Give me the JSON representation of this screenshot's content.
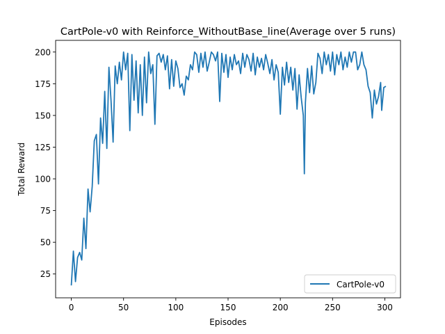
{
  "chart_data": {
    "type": "line",
    "title": "CartPole-v0 with Reinforce_WithoutBase_line(Average over 5 runs)",
    "xlabel": "Episodes",
    "ylabel": "Total Reward",
    "xlim": [
      -15,
      315
    ],
    "ylim": [
      6.2,
      209.2
    ],
    "xticks": [
      0,
      50,
      100,
      150,
      200,
      250,
      300
    ],
    "yticks": [
      25,
      50,
      75,
      100,
      125,
      150,
      175,
      200
    ],
    "grid": false,
    "legend_position": "lower right",
    "series": [
      {
        "name": "CartPole-v0",
        "color": "#1f77b4",
        "points": [
          [
            0,
            16
          ],
          [
            2,
            43
          ],
          [
            4,
            19
          ],
          [
            6,
            38
          ],
          [
            8,
            42
          ],
          [
            10,
            36
          ],
          [
            12,
            69
          ],
          [
            14,
            45
          ],
          [
            16,
            92
          ],
          [
            18,
            74
          ],
          [
            20,
            94
          ],
          [
            22,
            130
          ],
          [
            24,
            135
          ],
          [
            26,
            96
          ],
          [
            28,
            148
          ],
          [
            30,
            128
          ],
          [
            32,
            169
          ],
          [
            34,
            124
          ],
          [
            36,
            188
          ],
          [
            38,
            162
          ],
          [
            40,
            129
          ],
          [
            42,
            189
          ],
          [
            44,
            175
          ],
          [
            46,
            192
          ],
          [
            48,
            178
          ],
          [
            50,
            200
          ],
          [
            52,
            186
          ],
          [
            54,
            199
          ],
          [
            56,
            138
          ],
          [
            58,
            198
          ],
          [
            60,
            162
          ],
          [
            62,
            193
          ],
          [
            64,
            152
          ],
          [
            66,
            190
          ],
          [
            68,
            150
          ],
          [
            70,
            196
          ],
          [
            72,
            160
          ],
          [
            74,
            200
          ],
          [
            76,
            183
          ],
          [
            78,
            190
          ],
          [
            80,
            143
          ],
          [
            82,
            197
          ],
          [
            84,
            199
          ],
          [
            86,
            192
          ],
          [
            88,
            198
          ],
          [
            90,
            186
          ],
          [
            92,
            197
          ],
          [
            94,
            171
          ],
          [
            96,
            194
          ],
          [
            98,
            173
          ],
          [
            100,
            193
          ],
          [
            102,
            187
          ],
          [
            104,
            172
          ],
          [
            106,
            175
          ],
          [
            108,
            166
          ],
          [
            110,
            181
          ],
          [
            112,
            178
          ],
          [
            114,
            190
          ],
          [
            116,
            186
          ],
          [
            118,
            200
          ],
          [
            120,
            198
          ],
          [
            122,
            184
          ],
          [
            124,
            199
          ],
          [
            126,
            188
          ],
          [
            128,
            200
          ],
          [
            130,
            185
          ],
          [
            132,
            192
          ],
          [
            134,
            200
          ],
          [
            136,
            198
          ],
          [
            138,
            193
          ],
          [
            140,
            200
          ],
          [
            142,
            161
          ],
          [
            144,
            199
          ],
          [
            146,
            184
          ],
          [
            148,
            198
          ],
          [
            150,
            180
          ],
          [
            152,
            196
          ],
          [
            154,
            186
          ],
          [
            156,
            198
          ],
          [
            158,
            190
          ],
          [
            160,
            193
          ],
          [
            162,
            183
          ],
          [
            164,
            199
          ],
          [
            166,
            188
          ],
          [
            168,
            198
          ],
          [
            170,
            194
          ],
          [
            172,
            185
          ],
          [
            174,
            199
          ],
          [
            176,
            182
          ],
          [
            178,
            196
          ],
          [
            180,
            188
          ],
          [
            182,
            195
          ],
          [
            184,
            186
          ],
          [
            186,
            198
          ],
          [
            188,
            191
          ],
          [
            190,
            183
          ],
          [
            192,
            194
          ],
          [
            194,
            178
          ],
          [
            196,
            190
          ],
          [
            198,
            184
          ],
          [
            200,
            151
          ],
          [
            202,
            188
          ],
          [
            204,
            174
          ],
          [
            206,
            192
          ],
          [
            208,
            176
          ],
          [
            210,
            188
          ],
          [
            212,
            170
          ],
          [
            214,
            187
          ],
          [
            216,
            155
          ],
          [
            218,
            182
          ],
          [
            220,
            164
          ],
          [
            222,
            150
          ],
          [
            223,
            104
          ],
          [
            224,
            160
          ],
          [
            226,
            187
          ],
          [
            228,
            168
          ],
          [
            230,
            189
          ],
          [
            232,
            167
          ],
          [
            234,
            176
          ],
          [
            236,
            199
          ],
          [
            238,
            195
          ],
          [
            240,
            183
          ],
          [
            242,
            200
          ],
          [
            244,
            190
          ],
          [
            246,
            198
          ],
          [
            248,
            185
          ],
          [
            250,
            200
          ],
          [
            252,
            182
          ],
          [
            254,
            198
          ],
          [
            256,
            190
          ],
          [
            258,
            200
          ],
          [
            260,
            186
          ],
          [
            262,
            196
          ],
          [
            264,
            188
          ],
          [
            266,
            200
          ],
          [
            268,
            192
          ],
          [
            270,
            200
          ],
          [
            272,
            200
          ],
          [
            274,
            186
          ],
          [
            276,
            190
          ],
          [
            278,
            200
          ],
          [
            280,
            190
          ],
          [
            282,
            186
          ],
          [
            284,
            173
          ],
          [
            286,
            168
          ],
          [
            288,
            148
          ],
          [
            290,
            170
          ],
          [
            292,
            159
          ],
          [
            294,
            165
          ],
          [
            296,
            176
          ],
          [
            297,
            154
          ],
          [
            299,
            172
          ],
          [
            301,
            173
          ]
        ]
      }
    ]
  }
}
